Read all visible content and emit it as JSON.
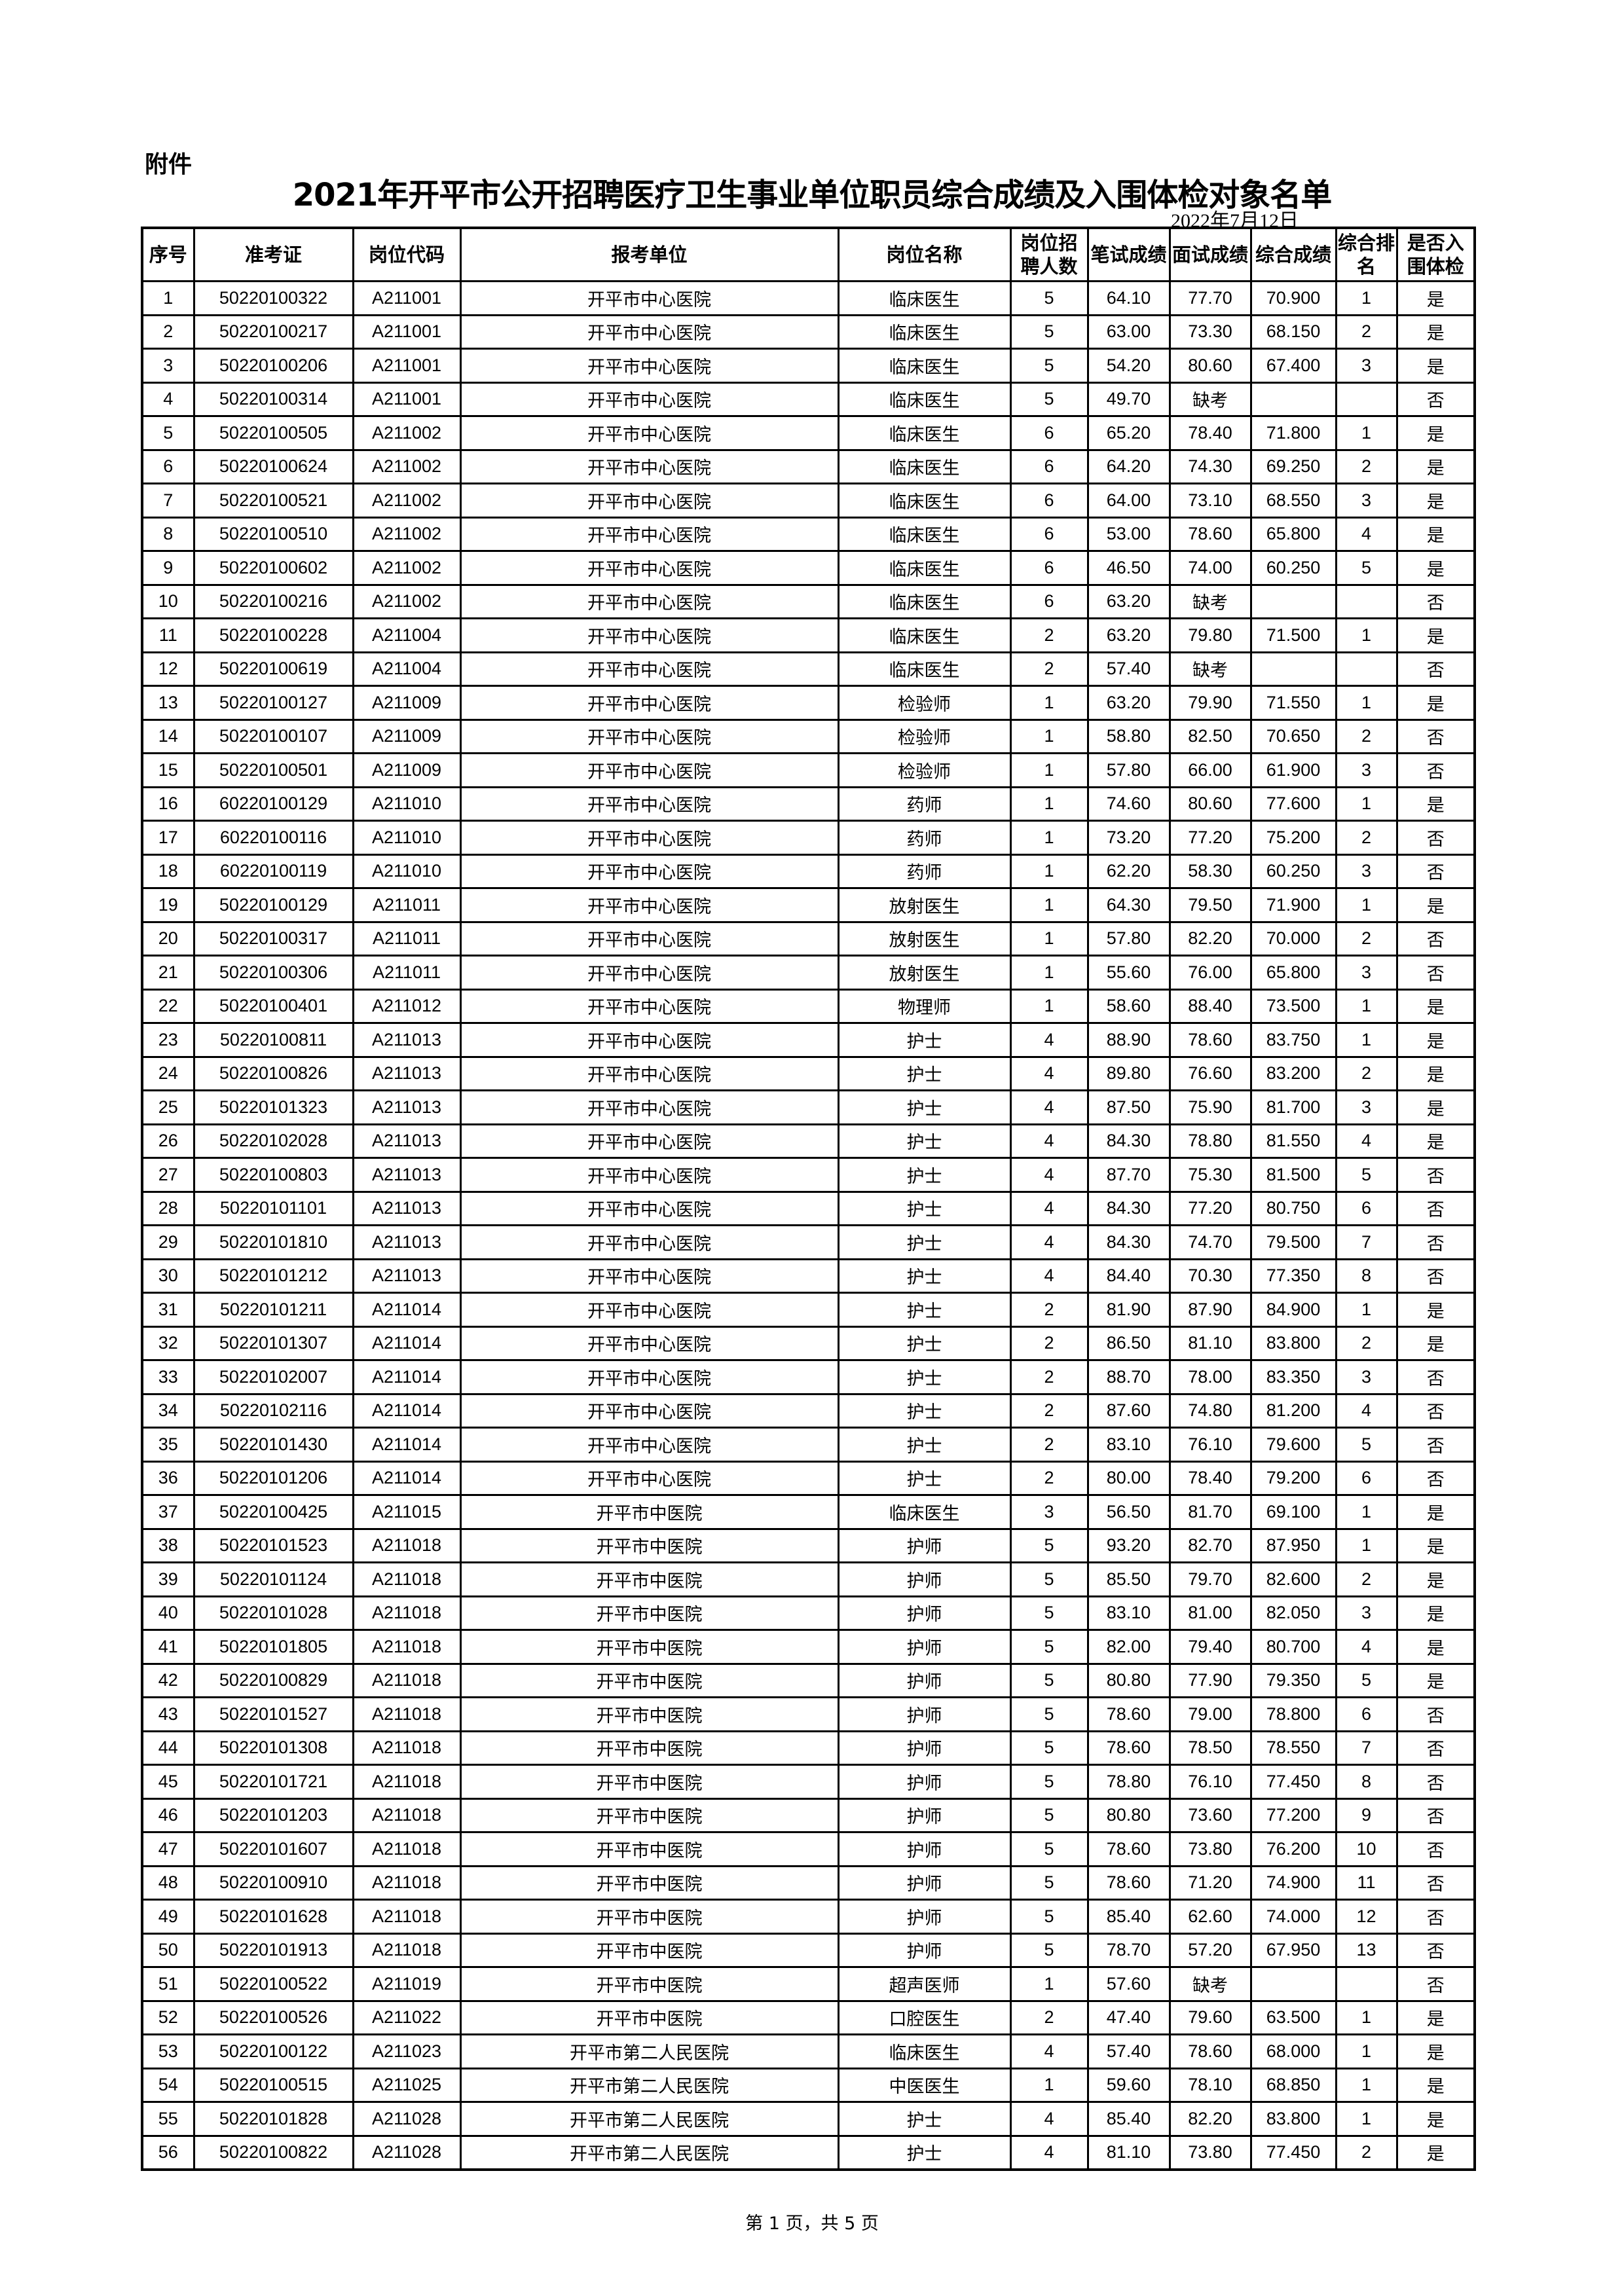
{
  "header": {
    "attachment_label": "附件",
    "title": "2021年开平市公开招聘医疗卫生事业单位职员综合成绩及入围体检对象名单",
    "date": "2022年7月12日"
  },
  "table": {
    "columns": [
      "序号",
      "准考证",
      "岗位代码",
      "报考单位",
      "岗位名称",
      "岗位招聘人数",
      "笔试成绩",
      "面试成绩",
      "综合成绩",
      "综合排名",
      "是否入围体检"
    ],
    "rows": [
      [
        "1",
        "50220100322",
        "A211001",
        "开平市中心医院",
        "临床医生",
        "5",
        "64.10",
        "77.70",
        "70.900",
        "1",
        "是"
      ],
      [
        "2",
        "50220100217",
        "A211001",
        "开平市中心医院",
        "临床医生",
        "5",
        "63.00",
        "73.30",
        "68.150",
        "2",
        "是"
      ],
      [
        "3",
        "50220100206",
        "A211001",
        "开平市中心医院",
        "临床医生",
        "5",
        "54.20",
        "80.60",
        "67.400",
        "3",
        "是"
      ],
      [
        "4",
        "50220100314",
        "A211001",
        "开平市中心医院",
        "临床医生",
        "5",
        "49.70",
        "缺考",
        "",
        "",
        "否"
      ],
      [
        "5",
        "50220100505",
        "A211002",
        "开平市中心医院",
        "临床医生",
        "6",
        "65.20",
        "78.40",
        "71.800",
        "1",
        "是"
      ],
      [
        "6",
        "50220100624",
        "A211002",
        "开平市中心医院",
        "临床医生",
        "6",
        "64.20",
        "74.30",
        "69.250",
        "2",
        "是"
      ],
      [
        "7",
        "50220100521",
        "A211002",
        "开平市中心医院",
        "临床医生",
        "6",
        "64.00",
        "73.10",
        "68.550",
        "3",
        "是"
      ],
      [
        "8",
        "50220100510",
        "A211002",
        "开平市中心医院",
        "临床医生",
        "6",
        "53.00",
        "78.60",
        "65.800",
        "4",
        "是"
      ],
      [
        "9",
        "50220100602",
        "A211002",
        "开平市中心医院",
        "临床医生",
        "6",
        "46.50",
        "74.00",
        "60.250",
        "5",
        "是"
      ],
      [
        "10",
        "50220100216",
        "A211002",
        "开平市中心医院",
        "临床医生",
        "6",
        "63.20",
        "缺考",
        "",
        "",
        "否"
      ],
      [
        "11",
        "50220100228",
        "A211004",
        "开平市中心医院",
        "临床医生",
        "2",
        "63.20",
        "79.80",
        "71.500",
        "1",
        "是"
      ],
      [
        "12",
        "50220100619",
        "A211004",
        "开平市中心医院",
        "临床医生",
        "2",
        "57.40",
        "缺考",
        "",
        "",
        "否"
      ],
      [
        "13",
        "50220100127",
        "A211009",
        "开平市中心医院",
        "检验师",
        "1",
        "63.20",
        "79.90",
        "71.550",
        "1",
        "是"
      ],
      [
        "14",
        "50220100107",
        "A211009",
        "开平市中心医院",
        "检验师",
        "1",
        "58.80",
        "82.50",
        "70.650",
        "2",
        "否"
      ],
      [
        "15",
        "50220100501",
        "A211009",
        "开平市中心医院",
        "检验师",
        "1",
        "57.80",
        "66.00",
        "61.900",
        "3",
        "否"
      ],
      [
        "16",
        "60220100129",
        "A211010",
        "开平市中心医院",
        "药师",
        "1",
        "74.60",
        "80.60",
        "77.600",
        "1",
        "是"
      ],
      [
        "17",
        "60220100116",
        "A211010",
        "开平市中心医院",
        "药师",
        "1",
        "73.20",
        "77.20",
        "75.200",
        "2",
        "否"
      ],
      [
        "18",
        "60220100119",
        "A211010",
        "开平市中心医院",
        "药师",
        "1",
        "62.20",
        "58.30",
        "60.250",
        "3",
        "否"
      ],
      [
        "19",
        "50220100129",
        "A211011",
        "开平市中心医院",
        "放射医生",
        "1",
        "64.30",
        "79.50",
        "71.900",
        "1",
        "是"
      ],
      [
        "20",
        "50220100317",
        "A211011",
        "开平市中心医院",
        "放射医生",
        "1",
        "57.80",
        "82.20",
        "70.000",
        "2",
        "否"
      ],
      [
        "21",
        "50220100306",
        "A211011",
        "开平市中心医院",
        "放射医生",
        "1",
        "55.60",
        "76.00",
        "65.800",
        "3",
        "否"
      ],
      [
        "22",
        "50220100401",
        "A211012",
        "开平市中心医院",
        "物理师",
        "1",
        "58.60",
        "88.40",
        "73.500",
        "1",
        "是"
      ],
      [
        "23",
        "50220100811",
        "A211013",
        "开平市中心医院",
        "护士",
        "4",
        "88.90",
        "78.60",
        "83.750",
        "1",
        "是"
      ],
      [
        "24",
        "50220100826",
        "A211013",
        "开平市中心医院",
        "护士",
        "4",
        "89.80",
        "76.60",
        "83.200",
        "2",
        "是"
      ],
      [
        "25",
        "50220101323",
        "A211013",
        "开平市中心医院",
        "护士",
        "4",
        "87.50",
        "75.90",
        "81.700",
        "3",
        "是"
      ],
      [
        "26",
        "50220102028",
        "A211013",
        "开平市中心医院",
        "护士",
        "4",
        "84.30",
        "78.80",
        "81.550",
        "4",
        "是"
      ],
      [
        "27",
        "50220100803",
        "A211013",
        "开平市中心医院",
        "护士",
        "4",
        "87.70",
        "75.30",
        "81.500",
        "5",
        "否"
      ],
      [
        "28",
        "50220101101",
        "A211013",
        "开平市中心医院",
        "护士",
        "4",
        "84.30",
        "77.20",
        "80.750",
        "6",
        "否"
      ],
      [
        "29",
        "50220101810",
        "A211013",
        "开平市中心医院",
        "护士",
        "4",
        "84.30",
        "74.70",
        "79.500",
        "7",
        "否"
      ],
      [
        "30",
        "50220101212",
        "A211013",
        "开平市中心医院",
        "护士",
        "4",
        "84.40",
        "70.30",
        "77.350",
        "8",
        "否"
      ],
      [
        "31",
        "50220101211",
        "A211014",
        "开平市中心医院",
        "护士",
        "2",
        "81.90",
        "87.90",
        "84.900",
        "1",
        "是"
      ],
      [
        "32",
        "50220101307",
        "A211014",
        "开平市中心医院",
        "护士",
        "2",
        "86.50",
        "81.10",
        "83.800",
        "2",
        "是"
      ],
      [
        "33",
        "50220102007",
        "A211014",
        "开平市中心医院",
        "护士",
        "2",
        "88.70",
        "78.00",
        "83.350",
        "3",
        "否"
      ],
      [
        "34",
        "50220102116",
        "A211014",
        "开平市中心医院",
        "护士",
        "2",
        "87.60",
        "74.80",
        "81.200",
        "4",
        "否"
      ],
      [
        "35",
        "50220101430",
        "A211014",
        "开平市中心医院",
        "护士",
        "2",
        "83.10",
        "76.10",
        "79.600",
        "5",
        "否"
      ],
      [
        "36",
        "50220101206",
        "A211014",
        "开平市中心医院",
        "护士",
        "2",
        "80.00",
        "78.40",
        "79.200",
        "6",
        "否"
      ],
      [
        "37",
        "50220100425",
        "A211015",
        "开平市中医院",
        "临床医生",
        "3",
        "56.50",
        "81.70",
        "69.100",
        "1",
        "是"
      ],
      [
        "38",
        "50220101523",
        "A211018",
        "开平市中医院",
        "护师",
        "5",
        "93.20",
        "82.70",
        "87.950",
        "1",
        "是"
      ],
      [
        "39",
        "50220101124",
        "A211018",
        "开平市中医院",
        "护师",
        "5",
        "85.50",
        "79.70",
        "82.600",
        "2",
        "是"
      ],
      [
        "40",
        "50220101028",
        "A211018",
        "开平市中医院",
        "护师",
        "5",
        "83.10",
        "81.00",
        "82.050",
        "3",
        "是"
      ],
      [
        "41",
        "50220101805",
        "A211018",
        "开平市中医院",
        "护师",
        "5",
        "82.00",
        "79.40",
        "80.700",
        "4",
        "是"
      ],
      [
        "42",
        "50220100829",
        "A211018",
        "开平市中医院",
        "护师",
        "5",
        "80.80",
        "77.90",
        "79.350",
        "5",
        "是"
      ],
      [
        "43",
        "50220101527",
        "A211018",
        "开平市中医院",
        "护师",
        "5",
        "78.60",
        "79.00",
        "78.800",
        "6",
        "否"
      ],
      [
        "44",
        "50220101308",
        "A211018",
        "开平市中医院",
        "护师",
        "5",
        "78.60",
        "78.50",
        "78.550",
        "7",
        "否"
      ],
      [
        "45",
        "50220101721",
        "A211018",
        "开平市中医院",
        "护师",
        "5",
        "78.80",
        "76.10",
        "77.450",
        "8",
        "否"
      ],
      [
        "46",
        "50220101203",
        "A211018",
        "开平市中医院",
        "护师",
        "5",
        "80.80",
        "73.60",
        "77.200",
        "9",
        "否"
      ],
      [
        "47",
        "50220101607",
        "A211018",
        "开平市中医院",
        "护师",
        "5",
        "78.60",
        "73.80",
        "76.200",
        "10",
        "否"
      ],
      [
        "48",
        "50220100910",
        "A211018",
        "开平市中医院",
        "护师",
        "5",
        "78.60",
        "71.20",
        "74.900",
        "11",
        "否"
      ],
      [
        "49",
        "50220101628",
        "A211018",
        "开平市中医院",
        "护师",
        "5",
        "85.40",
        "62.60",
        "74.000",
        "12",
        "否"
      ],
      [
        "50",
        "50220101913",
        "A211018",
        "开平市中医院",
        "护师",
        "5",
        "78.70",
        "57.20",
        "67.950",
        "13",
        "否"
      ],
      [
        "51",
        "50220100522",
        "A211019",
        "开平市中医院",
        "超声医师",
        "1",
        "57.60",
        "缺考",
        "",
        "",
        "否"
      ],
      [
        "52",
        "50220100526",
        "A211022",
        "开平市中医院",
        "口腔医生",
        "2",
        "47.40",
        "79.60",
        "63.500",
        "1",
        "是"
      ],
      [
        "53",
        "50220100122",
        "A211023",
        "开平市第二人民医院",
        "临床医生",
        "4",
        "57.40",
        "78.60",
        "68.000",
        "1",
        "是"
      ],
      [
        "54",
        "50220100515",
        "A211025",
        "开平市第二人民医院",
        "中医医生",
        "1",
        "59.60",
        "78.10",
        "68.850",
        "1",
        "是"
      ],
      [
        "55",
        "50220101828",
        "A211028",
        "开平市第二人民医院",
        "护士",
        "4",
        "85.40",
        "82.20",
        "83.800",
        "1",
        "是"
      ],
      [
        "56",
        "50220100822",
        "A211028",
        "开平市第二人民医院",
        "护士",
        "4",
        "81.10",
        "73.80",
        "77.450",
        "2",
        "是"
      ]
    ]
  },
  "footer": {
    "page_info": "第 1 页，共 5 页"
  }
}
